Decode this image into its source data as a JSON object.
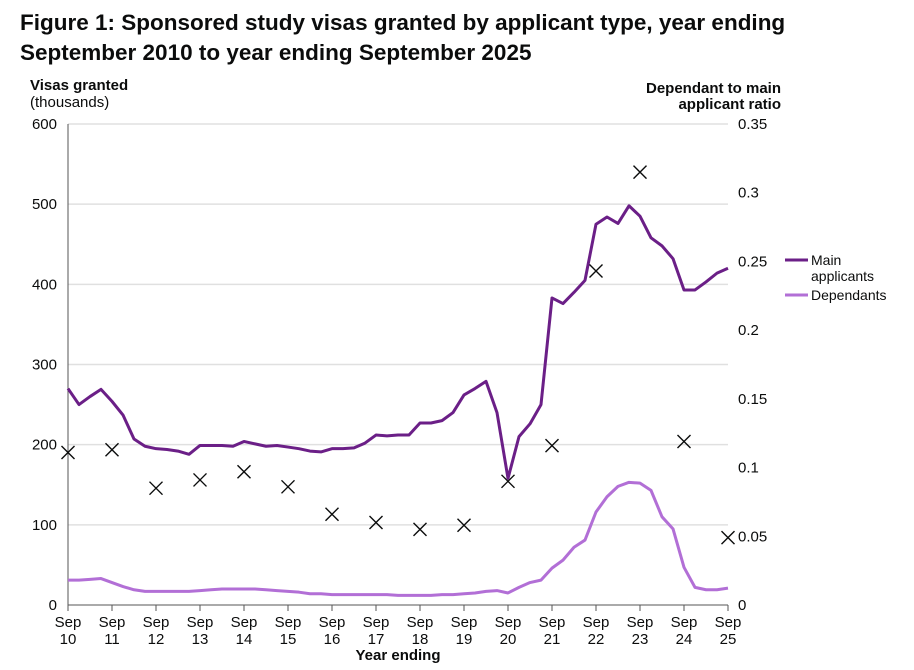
{
  "chart_data": {
    "type": "line",
    "title": "Figure 1: Sponsored study visas granted by applicant type, year ending September 2010 to year ending September 2025",
    "ylabel": [
      "Visas granted",
      "(thousands)"
    ],
    "y2label": [
      "Dependant to main",
      "applicant ratio"
    ],
    "xlabel": "Year ending",
    "ylim": [
      0,
      600
    ],
    "y2lim": [
      0,
      0.35
    ],
    "yticks": [
      "0",
      "100",
      "200",
      "300",
      "400",
      "500",
      "600"
    ],
    "y2ticks": [
      "0",
      "0.05",
      "0.1",
      "0.15",
      "0.2",
      "0.25",
      "0.3",
      "0.35"
    ],
    "xticks": [
      "10",
      "11",
      "12",
      "13",
      "14",
      "15",
      "16",
      "17",
      "18",
      "19",
      "20",
      "21",
      "22",
      "23",
      "24",
      "25"
    ],
    "xtick_prefix": "Sep",
    "grid": true,
    "legend_position": "right",
    "series": [
      {
        "name": "Main applicants",
        "color": "#6b1f87",
        "values": [
          270,
          250,
          260,
          269,
          254,
          237,
          207,
          198,
          195,
          194,
          192,
          188,
          199,
          199,
          199,
          198,
          204,
          201,
          198,
          199,
          197,
          195,
          192,
          191,
          195,
          195,
          196,
          202,
          212,
          211,
          212,
          212,
          227,
          227,
          230,
          240,
          262,
          270,
          279,
          240,
          158,
          210,
          226,
          250,
          383,
          376,
          390,
          405,
          475,
          484,
          476,
          498,
          485,
          458,
          448,
          432,
          393,
          393,
          403,
          414,
          420
        ]
      },
      {
        "name": "Dependants",
        "color": "#b26fd6",
        "values": [
          31,
          31,
          32,
          33,
          28,
          23,
          19,
          17,
          17,
          17,
          17,
          17,
          18,
          19,
          20,
          20,
          20,
          20,
          19,
          18,
          17,
          16,
          14,
          14,
          13,
          13,
          13,
          13,
          13,
          13,
          12,
          12,
          12,
          12,
          13,
          13,
          14,
          15,
          17,
          18,
          15,
          22,
          28,
          31,
          46,
          56,
          72,
          81,
          116,
          135,
          148,
          153,
          152,
          143,
          110,
          95,
          47,
          22,
          19,
          19,
          21
        ]
      }
    ],
    "ratio": {
      "name": "Dependant to main applicant ratio",
      "marker": "x",
      "color": "#0b0c0c",
      "values": [
        0.111,
        0.113,
        0.085,
        0.091,
        0.097,
        0.086,
        0.066,
        0.06,
        0.055,
        0.058,
        0.09,
        0.116,
        0.243,
        0.315,
        0.119,
        0.049
      ]
    },
    "legend": [
      "Main",
      "applicants",
      "Dependants"
    ]
  }
}
